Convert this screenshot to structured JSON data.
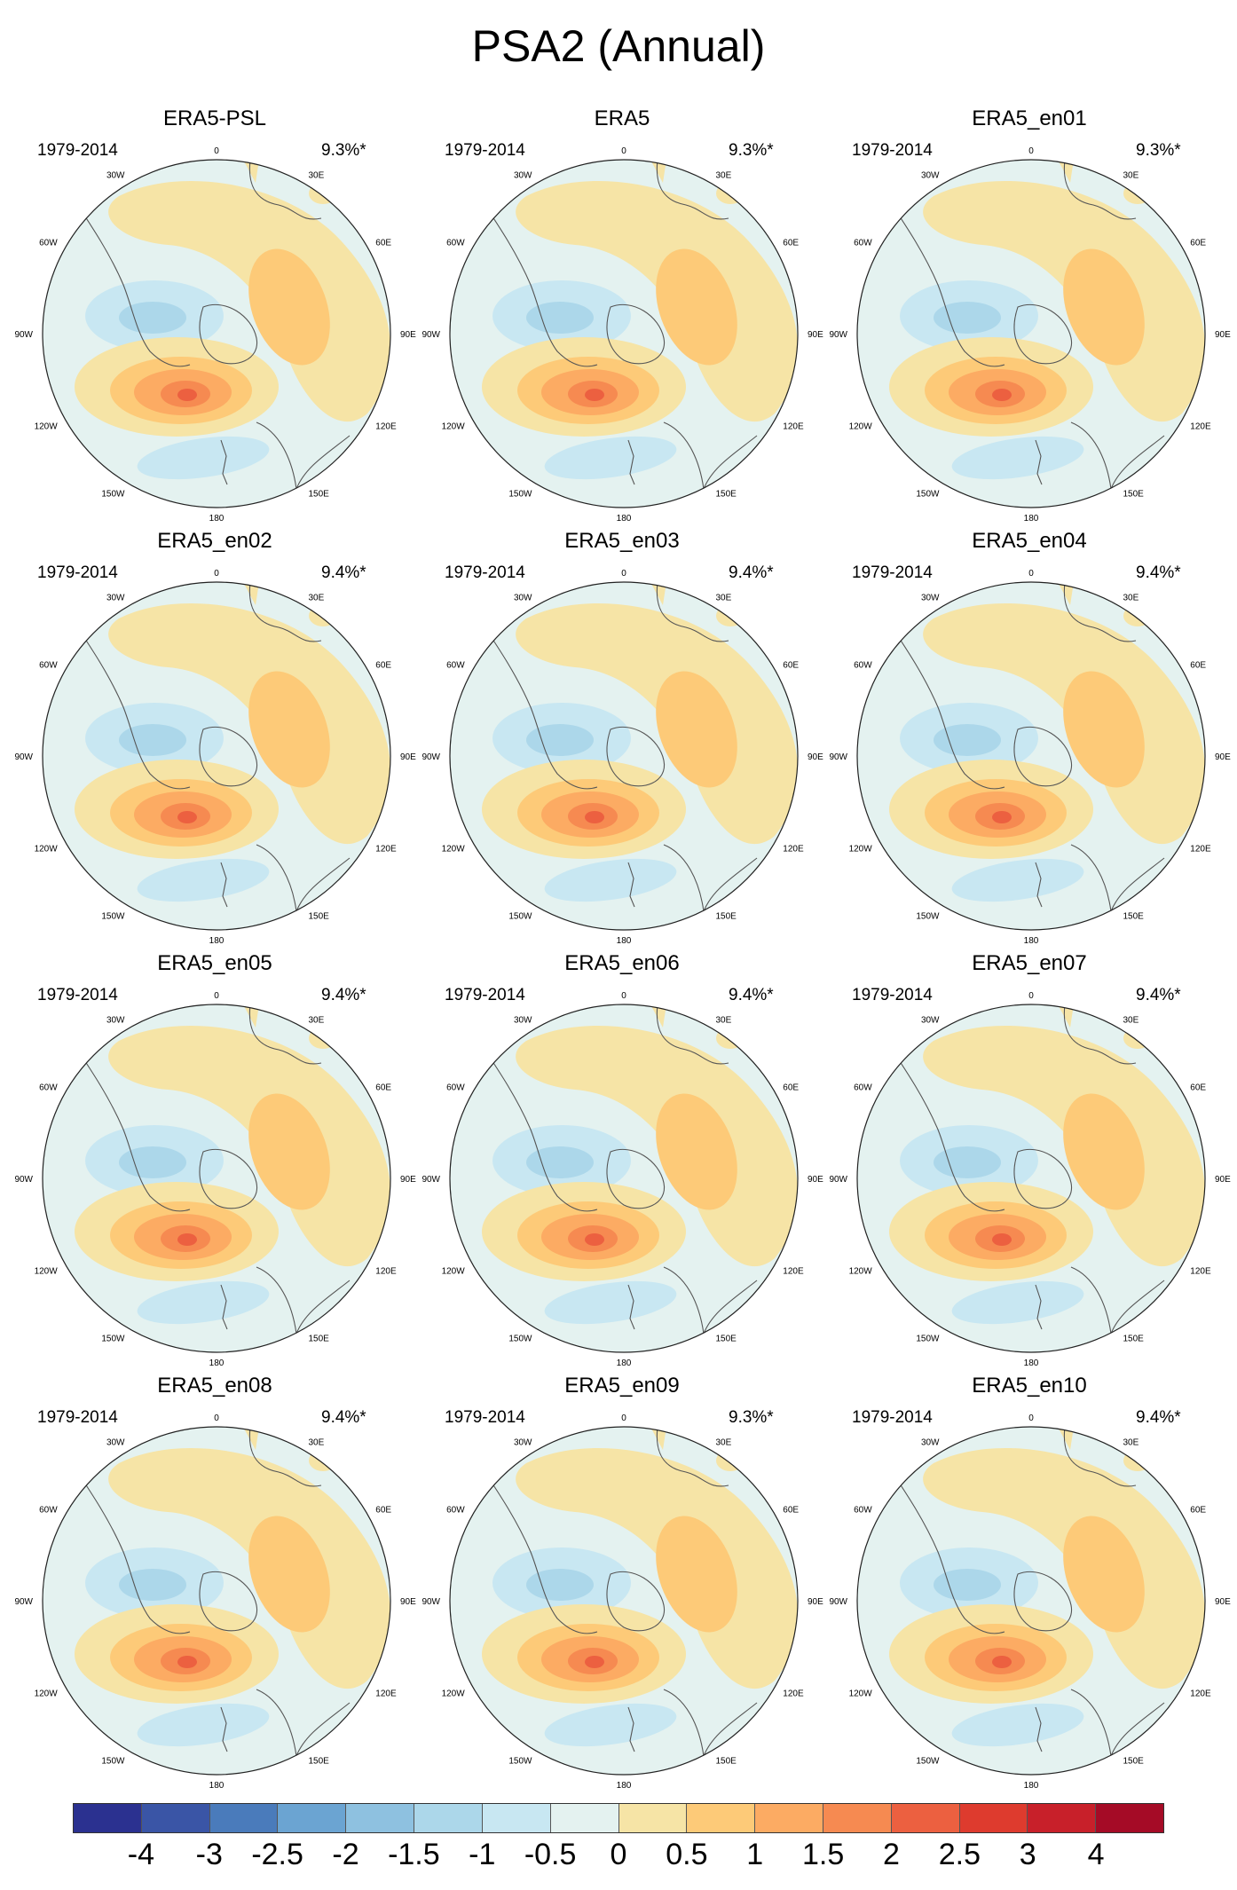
{
  "title": "PSA2 (Annual)",
  "panels": [
    {
      "title": "ERA5-PSL",
      "period": "1979-2014",
      "variance": "9.3%*"
    },
    {
      "title": "ERA5",
      "period": "1979-2014",
      "variance": "9.3%*"
    },
    {
      "title": "ERA5_en01",
      "period": "1979-2014",
      "variance": "9.3%*"
    },
    {
      "title": "ERA5_en02",
      "period": "1979-2014",
      "variance": "9.4%*"
    },
    {
      "title": "ERA5_en03",
      "period": "1979-2014",
      "variance": "9.4%*"
    },
    {
      "title": "ERA5_en04",
      "period": "1979-2014",
      "variance": "9.4%*"
    },
    {
      "title": "ERA5_en05",
      "period": "1979-2014",
      "variance": "9.4%*"
    },
    {
      "title": "ERA5_en06",
      "period": "1979-2014",
      "variance": "9.4%*"
    },
    {
      "title": "ERA5_en07",
      "period": "1979-2014",
      "variance": "9.4%*"
    },
    {
      "title": "ERA5_en08",
      "period": "1979-2014",
      "variance": "9.4%*"
    },
    {
      "title": "ERA5_en09",
      "period": "1979-2014",
      "variance": "9.3%*"
    },
    {
      "title": "ERA5_en10",
      "period": "1979-2014",
      "variance": "9.4%*"
    }
  ],
  "longitude_labels": [
    "0",
    "30E",
    "60E",
    "90E",
    "120E",
    "150E",
    "180",
    "150W",
    "120W",
    "90W",
    "60W",
    "30W"
  ],
  "colorbar": {
    "labels": [
      "-4",
      "-3",
      "-2.5",
      "-2",
      "-1.5",
      "-1",
      "-0.5",
      "0",
      "0.5",
      "1",
      "1.5",
      "2",
      "2.5",
      "3",
      "4"
    ],
    "colors": [
      "#2b3190",
      "#3a55a6",
      "#4a7bbb",
      "#6ba4d2",
      "#8ec1e0",
      "#acd7ea",
      "#c8e7f2",
      "#e4f2f0",
      "#f6e4a6",
      "#fdca78",
      "#fcab63",
      "#f68a51",
      "#ec6040",
      "#de3b2e",
      "#c8202a",
      "#a50b26"
    ]
  },
  "map_colors": {
    "ocean_background": "#e4f2f0",
    "positive_weak": "#f6e4a6",
    "positive_mid": "#fdca78",
    "positive_strong": "#fcab63",
    "positive_stronger": "#f68a51",
    "positive_max": "#ec6040",
    "negative_weak": "#c8e7f2",
    "negative_mid": "#acd7ea",
    "coastline": "#555555"
  }
}
